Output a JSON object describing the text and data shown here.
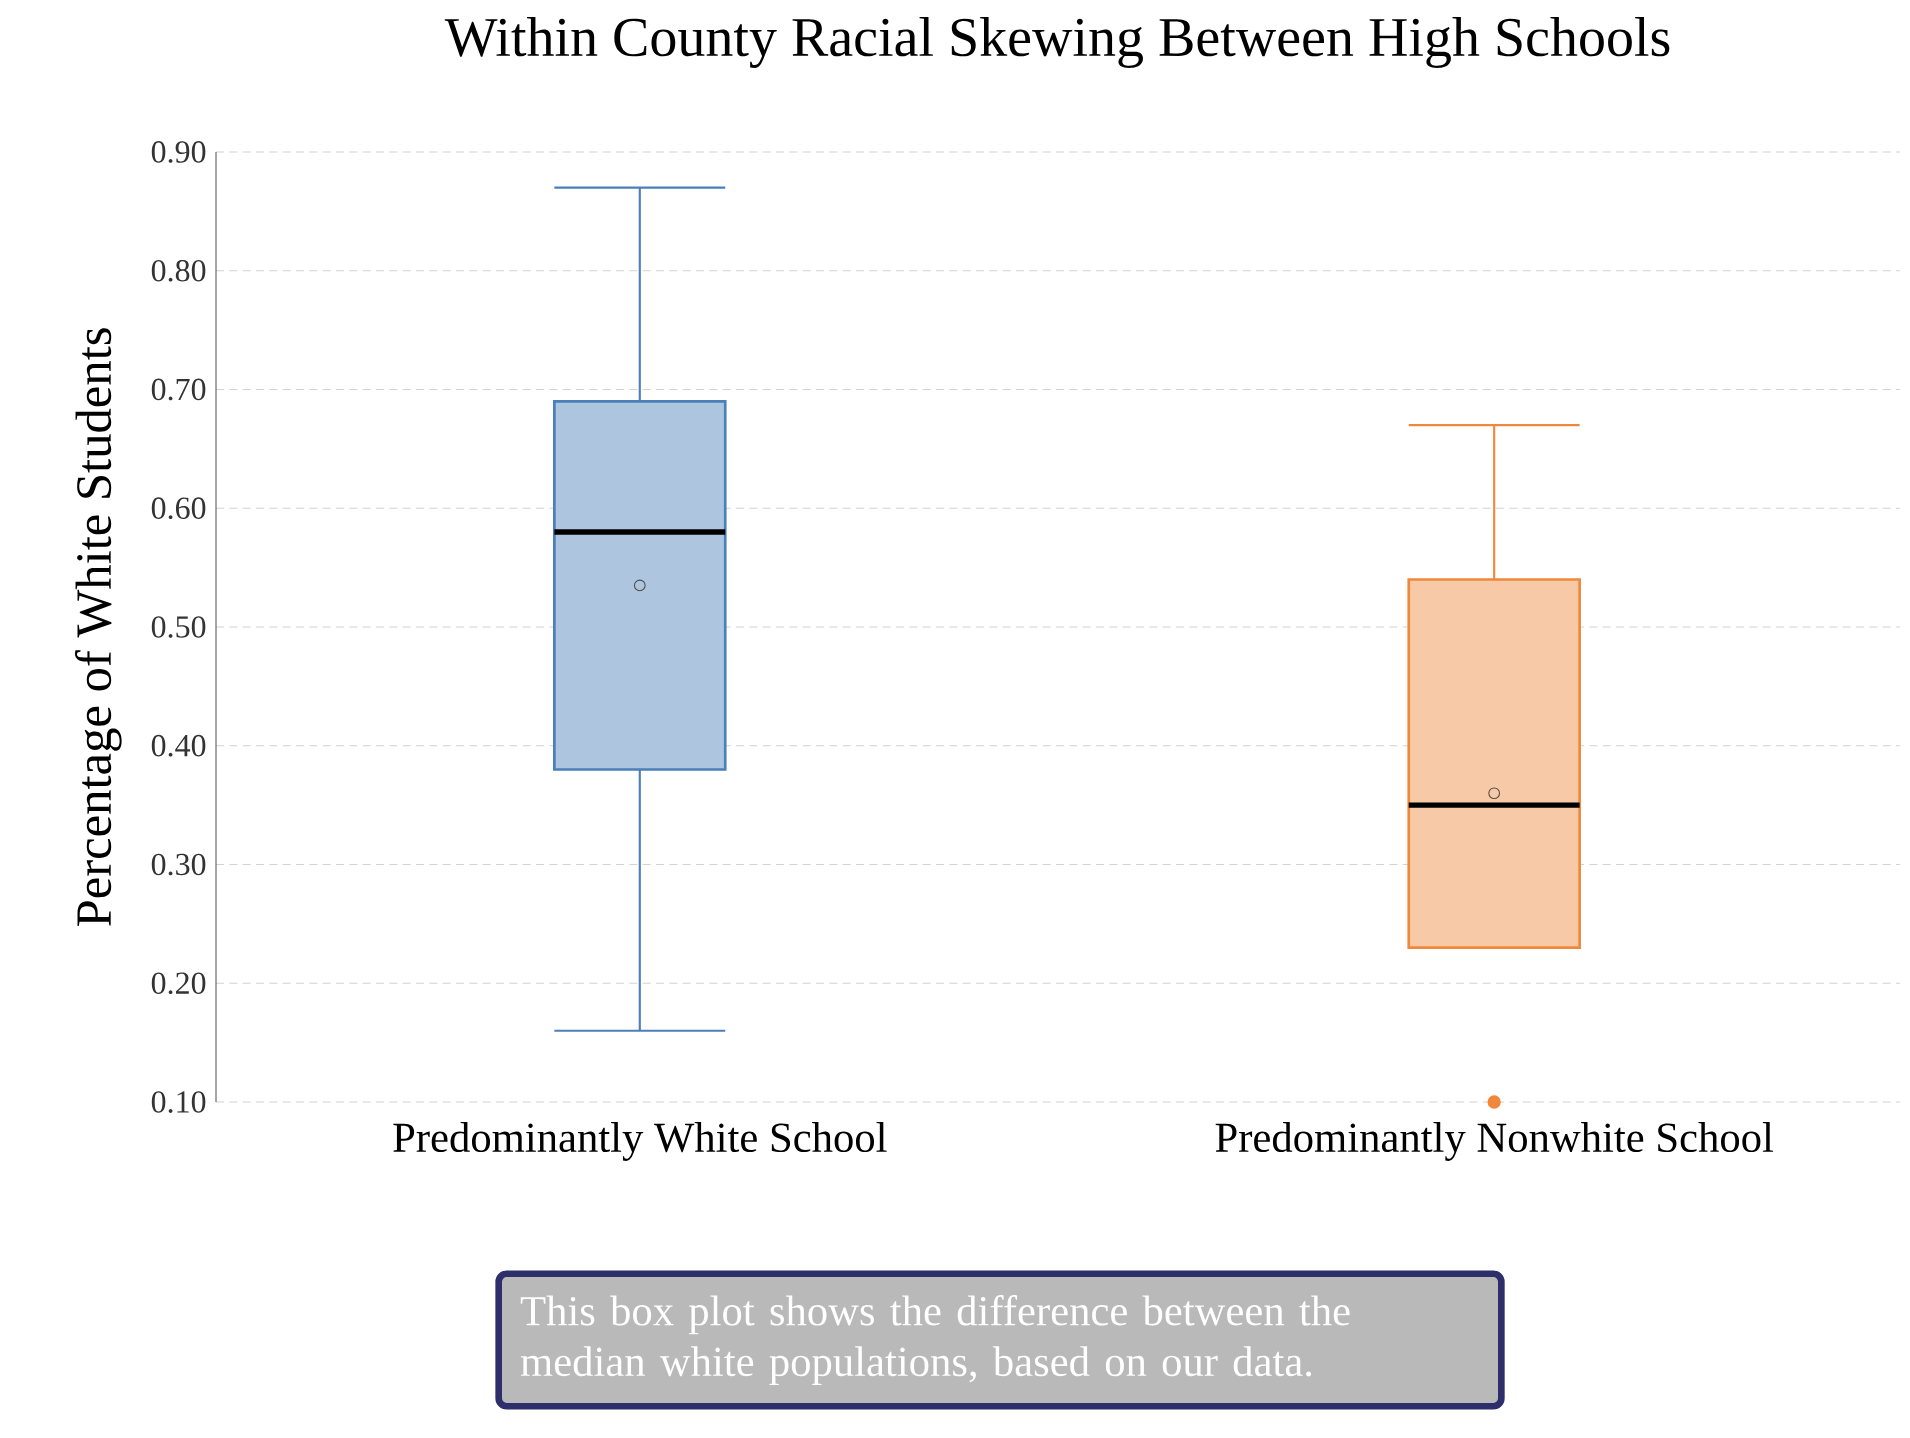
{
  "chart_data": {
    "type": "box",
    "title": "Within County Racial Skewing Between High Schools",
    "ylabel": "Percentage of White Students",
    "categories": [
      "Predominantly White School",
      "Predominantly Nonwhite School"
    ],
    "boxes": [
      {
        "low": 0.16,
        "q1": 0.38,
        "median": 0.58,
        "q3": 0.69,
        "high": 0.87,
        "mean": 0.535
      },
      {
        "low": 0.23,
        "q1": 0.23,
        "median": 0.35,
        "q3": 0.54,
        "high": 0.67,
        "mean": 0.36,
        "outliers": [
          0.1
        ]
      }
    ],
    "colors": [
      "#4a7fb8",
      "#f0883a"
    ],
    "ylim": [
      0.1,
      0.9
    ],
    "yticks": [
      {
        "value": 0.1,
        "label": "0.10"
      },
      {
        "value": 0.2,
        "label": "0.20"
      },
      {
        "value": 0.3,
        "label": "0.30"
      },
      {
        "value": 0.4,
        "label": "0.40"
      },
      {
        "value": 0.5,
        "label": "0.50"
      },
      {
        "value": 0.6,
        "label": "0.60"
      },
      {
        "value": 0.7,
        "label": "0.70"
      },
      {
        "value": 0.8,
        "label": "0.80"
      },
      {
        "value": 0.9,
        "label": "0.90"
      }
    ],
    "grid": "y",
    "annotations": [
      "This box plot shows the difference between the median white populations, based on our data."
    ]
  }
}
